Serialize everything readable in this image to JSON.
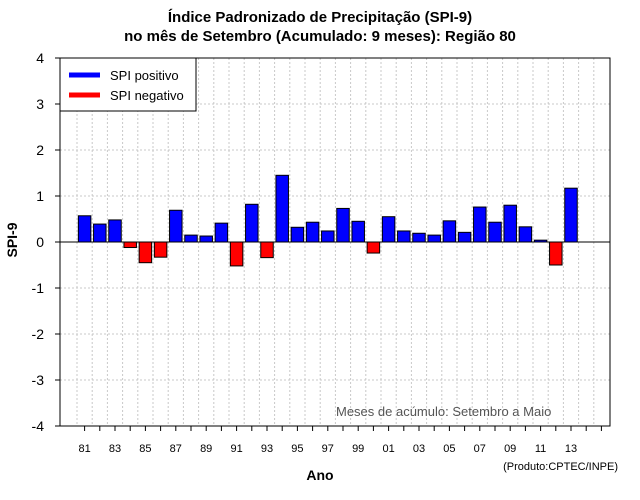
{
  "chart_data": {
    "type": "bar",
    "title_line1": "Índice Padronizado de Precipitação (SPI-9)",
    "title_line2": "no mês de Setembro (Acumulado: 9 meses): Região 80",
    "xlabel": "Ano",
    "ylabel": "SPI-9",
    "ylim": [
      -4,
      4
    ],
    "yticks": [
      "4",
      "3",
      "2",
      "1",
      "0",
      "-1",
      "-2",
      "-3",
      "-4"
    ],
    "ytick_values": [
      4,
      3,
      2,
      1,
      0,
      -1,
      -2,
      -3,
      -4
    ],
    "xtick_labels": [
      "81",
      "83",
      "85",
      "87",
      "89",
      "91",
      "93",
      "95",
      "97",
      "99",
      "01",
      "03",
      "05",
      "07",
      "09",
      "11",
      "13"
    ],
    "categories": [
      "1981",
      "1982",
      "1983",
      "1984",
      "1985",
      "1986",
      "1987",
      "1988",
      "1989",
      "1990",
      "1991",
      "1992",
      "1993",
      "1994",
      "1995",
      "1996",
      "1997",
      "1998",
      "1999",
      "2000",
      "2001",
      "2002",
      "2003",
      "2004",
      "2005",
      "2006",
      "2007",
      "2008",
      "2009",
      "2010",
      "2011",
      "2012",
      "2013"
    ],
    "values": [
      0.57,
      0.39,
      0.48,
      -0.12,
      -0.45,
      -0.33,
      0.69,
      0.15,
      0.13,
      0.41,
      -0.52,
      0.82,
      -0.34,
      1.45,
      0.32,
      0.43,
      0.24,
      0.73,
      0.45,
      -0.24,
      0.55,
      0.24,
      0.19,
      0.15,
      0.46,
      0.21,
      0.76,
      0.43,
      0.8,
      0.33,
      0.04,
      -0.5,
      1.17
    ],
    "legend": [
      {
        "label": "SPI positivo",
        "color": "#0000ff"
      },
      {
        "label": "SPI negativo",
        "color": "#ff0000"
      }
    ],
    "legend_position": "top-left",
    "annotation": "Meses de acúmulo: Setembro a Maio",
    "credit": "(Produto:CPTEC/INPE)",
    "grid": true,
    "positive_color": "#0000ff",
    "negative_color": "#ff0000"
  }
}
